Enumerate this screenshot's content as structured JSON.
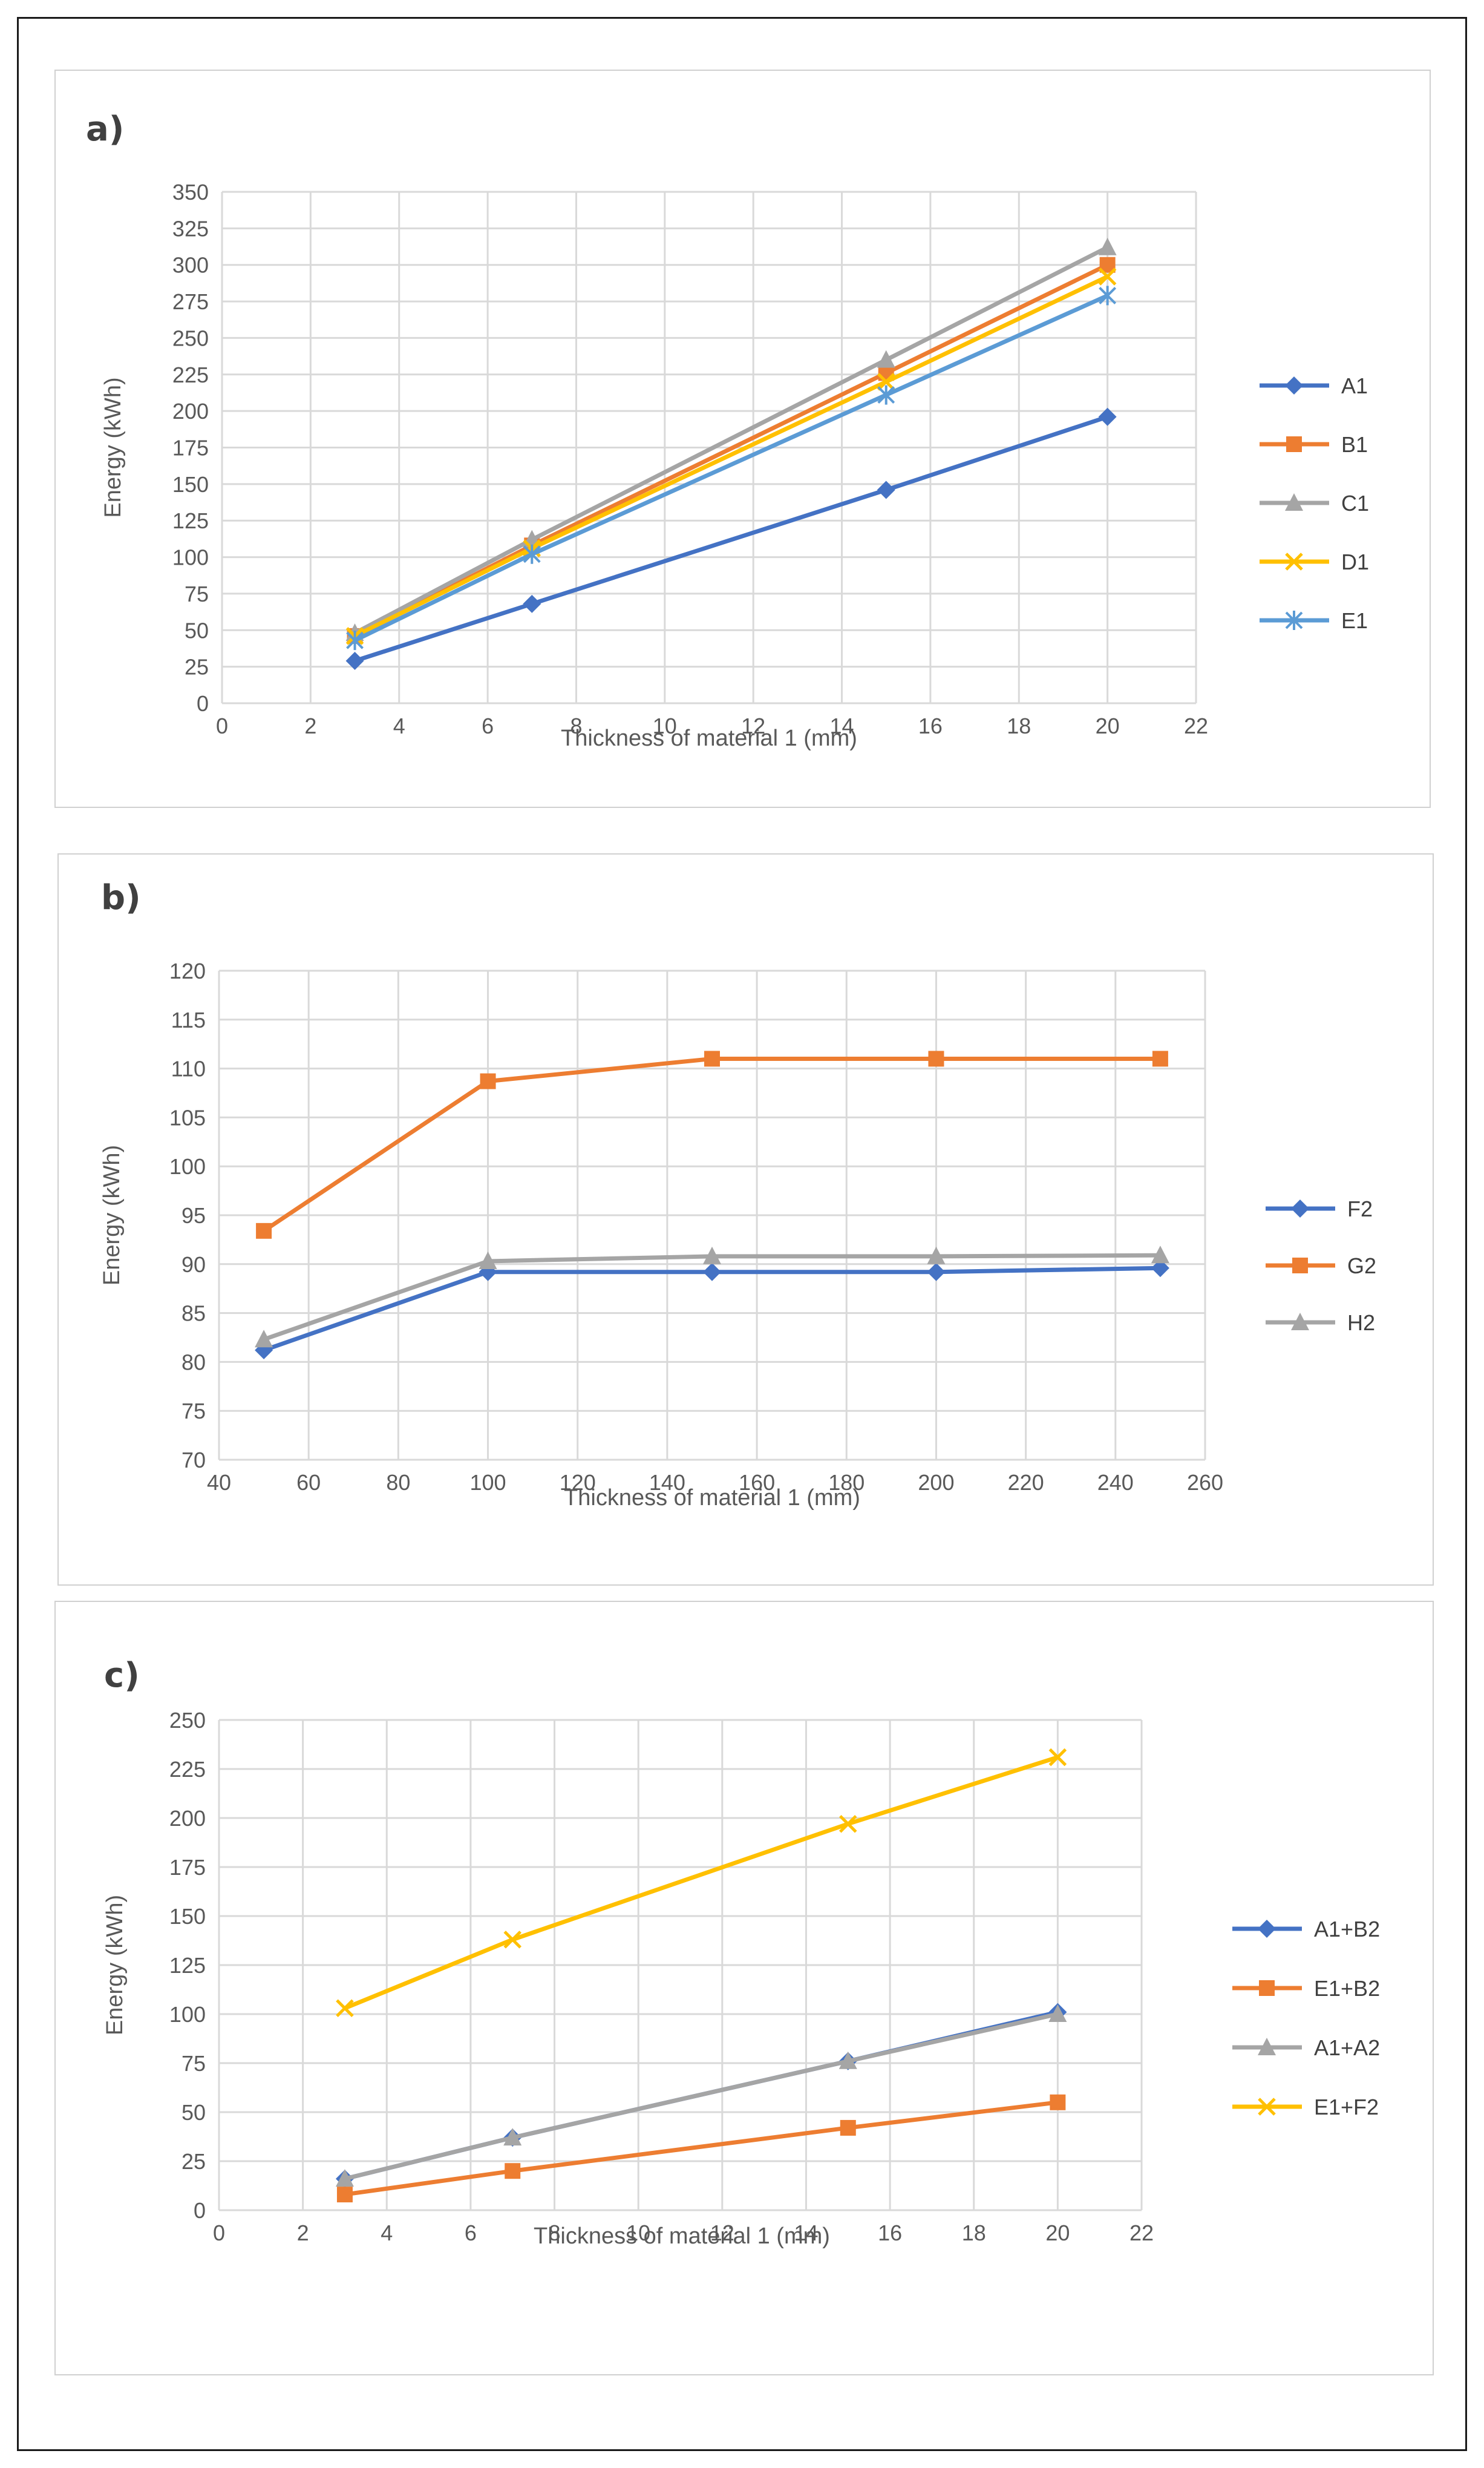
{
  "colors": {
    "blue": "#4472C4",
    "orange": "#ED7D31",
    "gray": "#A5A5A5",
    "yellow": "#FFC000",
    "lightblue": "#5B9BD5"
  },
  "chart_data": [
    {
      "panel_label": "a)",
      "type": "line",
      "xlabel": "Thickness of material 1 (mm)",
      "ylabel": "Energy (kWh)",
      "xlim": [
        0,
        22
      ],
      "xstep": 2,
      "ylim": [
        0,
        350
      ],
      "ystep": 25,
      "x": [
        3,
        7,
        15,
        20
      ],
      "series": [
        {
          "name": "A1",
          "color": "#4472C4",
          "marker": "diamond",
          "values": [
            29,
            68,
            146,
            196
          ]
        },
        {
          "name": "B1",
          "color": "#ED7D31",
          "marker": "square",
          "values": [
            46,
            108,
            226,
            300
          ]
        },
        {
          "name": "C1",
          "color": "#A5A5A5",
          "marker": "triangle",
          "values": [
            48,
            112,
            235,
            312
          ]
        },
        {
          "name": "D1",
          "color": "#FFC000",
          "marker": "x",
          "values": [
            46,
            106,
            220,
            292
          ]
        },
        {
          "name": "E1",
          "color": "#5B9BD5",
          "marker": "star",
          "values": [
            43,
            102,
            211,
            279
          ]
        }
      ]
    },
    {
      "panel_label": "b)",
      "type": "line",
      "xlabel": "Thickness of material 1 (mm)",
      "ylabel": "Energy (kWh)",
      "xlim": [
        40,
        260
      ],
      "xstep": 20,
      "ylim": [
        70,
        120
      ],
      "ystep": 5,
      "x": [
        50,
        100,
        150,
        200,
        250
      ],
      "series": [
        {
          "name": "F2",
          "color": "#4472C4",
          "marker": "diamond",
          "values": [
            81.2,
            89.2,
            89.2,
            89.2,
            89.6
          ]
        },
        {
          "name": "G2",
          "color": "#ED7D31",
          "marker": "square",
          "values": [
            93.4,
            108.7,
            111.0,
            111.0,
            111.0
          ]
        },
        {
          "name": "H2",
          "color": "#A5A5A5",
          "marker": "triangle",
          "values": [
            82.3,
            90.3,
            90.8,
            90.8,
            90.9
          ]
        }
      ]
    },
    {
      "panel_label": "c)",
      "type": "line",
      "xlabel": "Thickness of material 1 (mm)",
      "ylabel": "Energy (kWh)",
      "xlim": [
        0,
        22
      ],
      "xstep": 2,
      "ylim": [
        0,
        250
      ],
      "ystep": 25,
      "x": [
        3,
        7,
        15,
        20
      ],
      "series": [
        {
          "name": "A1+B2",
          "color": "#4472C4",
          "marker": "diamond",
          "values": [
            16,
            37,
            76,
            101
          ]
        },
        {
          "name": "E1+B2",
          "color": "#ED7D31",
          "marker": "square",
          "values": [
            8,
            20,
            42,
            55
          ]
        },
        {
          "name": "A1+A2",
          "color": "#A5A5A5",
          "marker": "triangle",
          "values": [
            16,
            37,
            76,
            100
          ]
        },
        {
          "name": "E1+F2",
          "color": "#FFC000",
          "marker": "x",
          "values": [
            103,
            138,
            197,
            231
          ]
        }
      ]
    }
  ]
}
